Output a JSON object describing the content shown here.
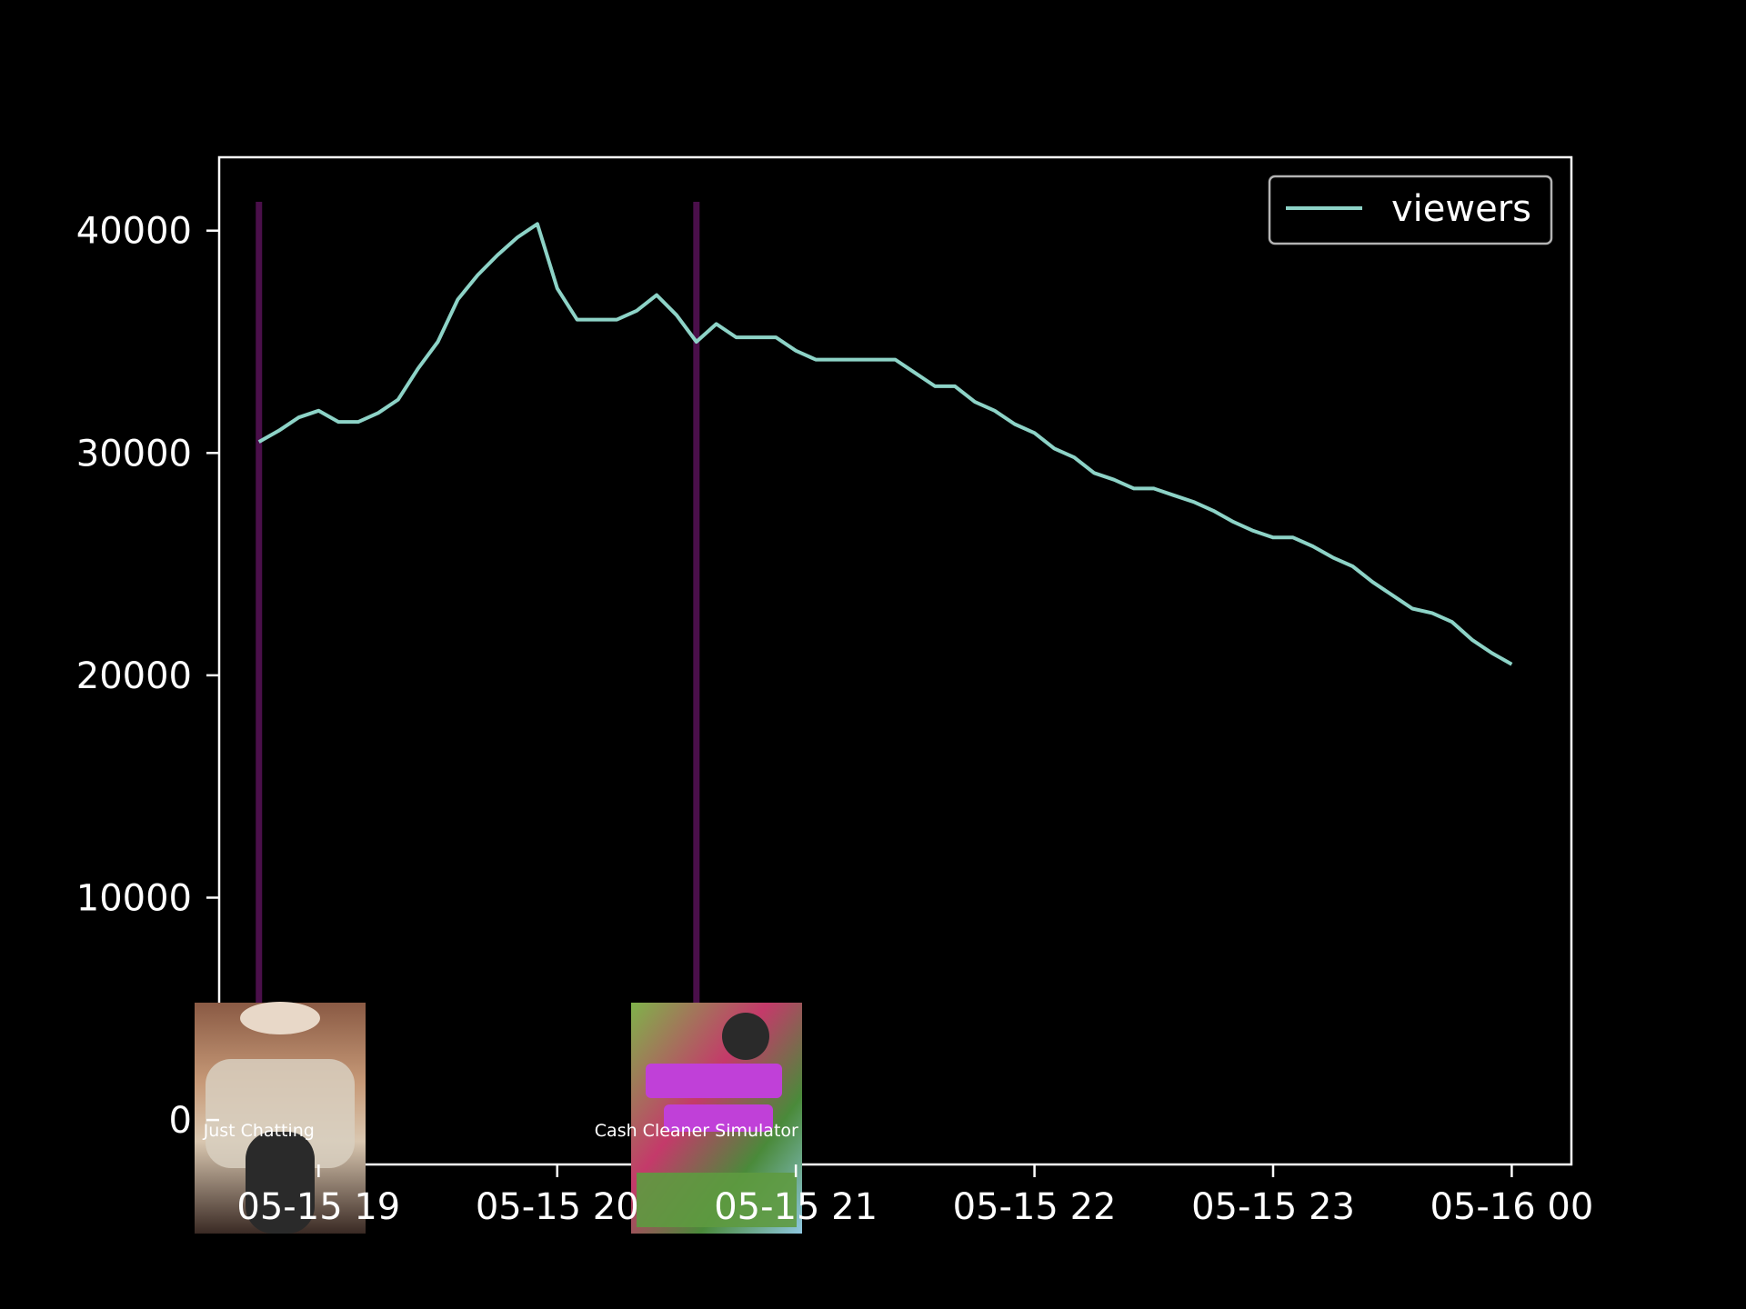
{
  "chart_data": {
    "type": "line",
    "title": "",
    "xlabel": "",
    "ylabel": "",
    "x_ticks": [
      "05-15 19",
      "05-15 20",
      "05-15 21",
      "05-15 22",
      "05-15 23",
      "05-16 00"
    ],
    "y_ticks": [
      0,
      10000,
      20000,
      30000,
      40000
    ],
    "ylim": [
      -2000,
      43300
    ],
    "xlim": [
      "05-15 18:35",
      "05-16 00:15"
    ],
    "grid": false,
    "legend_position": "top-right",
    "series": [
      {
        "name": "viewers",
        "color": "#8dd3c7",
        "x": [
          "05-15 18:45",
          "05-15 18:50",
          "05-15 18:55",
          "05-15 19:00",
          "05-15 19:05",
          "05-15 19:10",
          "05-15 19:15",
          "05-15 19:20",
          "05-15 19:25",
          "05-15 19:30",
          "05-15 19:35",
          "05-15 19:40",
          "05-15 19:45",
          "05-15 19:50",
          "05-15 19:55",
          "05-15 20:00",
          "05-15 20:05",
          "05-15 20:10",
          "05-15 20:15",
          "05-15 20:20",
          "05-15 20:25",
          "05-15 20:30",
          "05-15 20:35",
          "05-15 20:40",
          "05-15 20:45",
          "05-15 20:50",
          "05-15 20:55",
          "05-15 21:00",
          "05-15 21:05",
          "05-15 21:10",
          "05-15 21:15",
          "05-15 21:20",
          "05-15 21:25",
          "05-15 21:30",
          "05-15 21:35",
          "05-15 21:40",
          "05-15 21:45",
          "05-15 21:50",
          "05-15 21:55",
          "05-15 22:00",
          "05-15 22:05",
          "05-15 22:10",
          "05-15 22:15",
          "05-15 22:20",
          "05-15 22:25",
          "05-15 22:30",
          "05-15 22:35",
          "05-15 22:40",
          "05-15 22:45",
          "05-15 22:50",
          "05-15 22:55",
          "05-15 23:00",
          "05-15 23:05",
          "05-15 23:10",
          "05-15 23:15",
          "05-15 23:20",
          "05-15 23:25",
          "05-15 23:30",
          "05-15 23:35",
          "05-15 23:40",
          "05-15 23:45",
          "05-15 23:50",
          "05-15 23:55",
          "05-16 00:00"
        ],
        "values": [
          30500,
          31000,
          31600,
          31900,
          31400,
          31400,
          31800,
          32400,
          33800,
          35000,
          36900,
          38000,
          38900,
          39700,
          40300,
          37400,
          36000,
          36000,
          36000,
          36400,
          37100,
          36200,
          35000,
          35800,
          35200,
          35200,
          35200,
          34600,
          34200,
          34200,
          34200,
          34200,
          34200,
          33600,
          33000,
          33000,
          32300,
          31900,
          31300,
          30900,
          30200,
          29800,
          29100,
          28800,
          28400,
          28400,
          28100,
          27800,
          27400,
          26900,
          26500,
          26200,
          26200,
          25800,
          25300,
          24900,
          24200,
          23600,
          23000,
          22800,
          22400,
          21600,
          21000,
          20500
        ]
      }
    ],
    "annotations": [
      {
        "label": "Just Chatting",
        "x": "05-15 18:45"
      },
      {
        "label": "Cash Cleaner Simulator",
        "x": "05-15 20:35"
      }
    ]
  }
}
